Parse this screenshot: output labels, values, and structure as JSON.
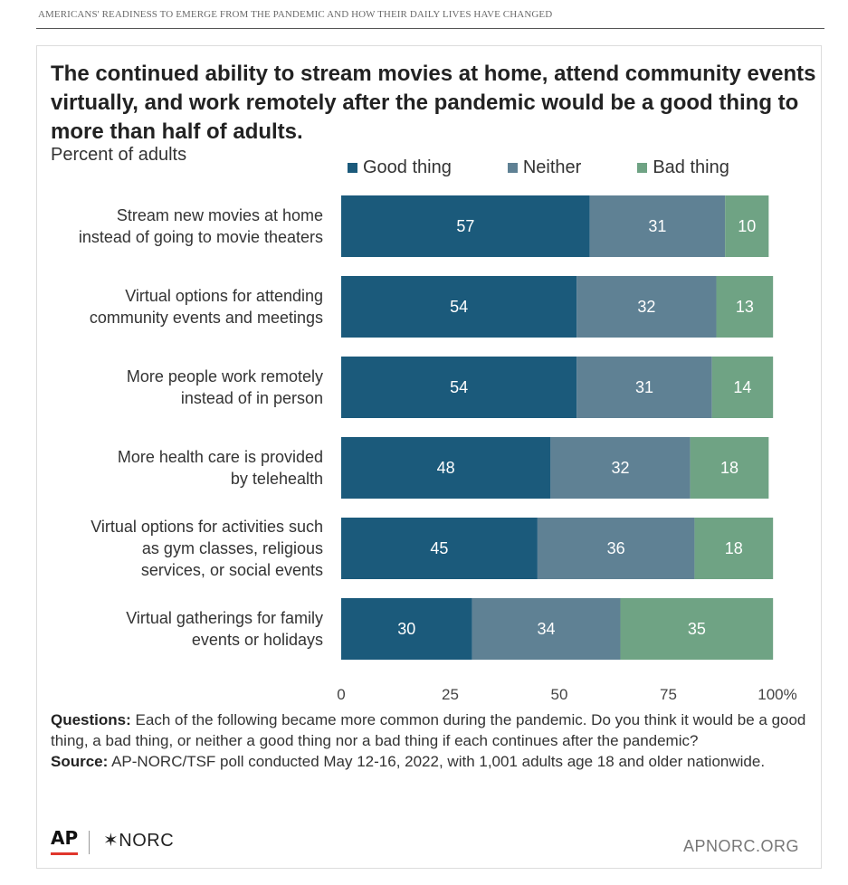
{
  "header": "AMERICANS' READINESS TO EMERGE FROM THE PANDEMIC AND HOW THEIR DAILY LIVES HAVE CHANGED",
  "title": "The continued ability to stream movies at home, attend community events virtually, and work remotely after the pandemic would be a good thing to more than half of adults.",
  "subtitle": "Percent of adults",
  "colors": {
    "good": "#1b5a7b",
    "neither": "#5f8194",
    "bad": "#6fa384"
  },
  "chart_data": {
    "type": "bar",
    "orientation": "horizontal",
    "stacked": true,
    "categories": [
      [
        "Stream new movies at home",
        "instead of going to movie theaters"
      ],
      [
        "Virtual options for attending",
        "community events and meetings"
      ],
      [
        "More people work remotely",
        "instead of in person"
      ],
      [
        "More health care is provided",
        "by telehealth"
      ],
      [
        "Virtual options for activities such",
        "as gym classes, religious",
        "services, or social events"
      ],
      [
        "Virtual gatherings for family",
        "events or holidays"
      ]
    ],
    "series": [
      {
        "name": "Good thing",
        "values": [
          57,
          54,
          54,
          48,
          45,
          30
        ]
      },
      {
        "name": "Neither",
        "values": [
          31,
          32,
          31,
          32,
          36,
          34
        ]
      },
      {
        "name": "Bad thing",
        "values": [
          10,
          13,
          14,
          18,
          18,
          35
        ]
      }
    ],
    "xlim": [
      0,
      100
    ],
    "xticks": [
      "0",
      "25",
      "50",
      "75",
      "100%"
    ],
    "legend_position": "top"
  },
  "notes": {
    "questions_label": "Questions:",
    "questions_text": " Each of the following became more common during the pandemic. Do you think it would be a good thing, a bad thing, or neither a good thing nor a bad thing if each continues after the pandemic?",
    "source_label": "Source:",
    "source_text": " AP-NORC/TSF poll conducted May 12-16, 2022, with 1,001 adults age 18 and older nationwide."
  },
  "footer": {
    "ap": "AP",
    "norc": "✶NORC",
    "site": "APNORC.ORG"
  }
}
